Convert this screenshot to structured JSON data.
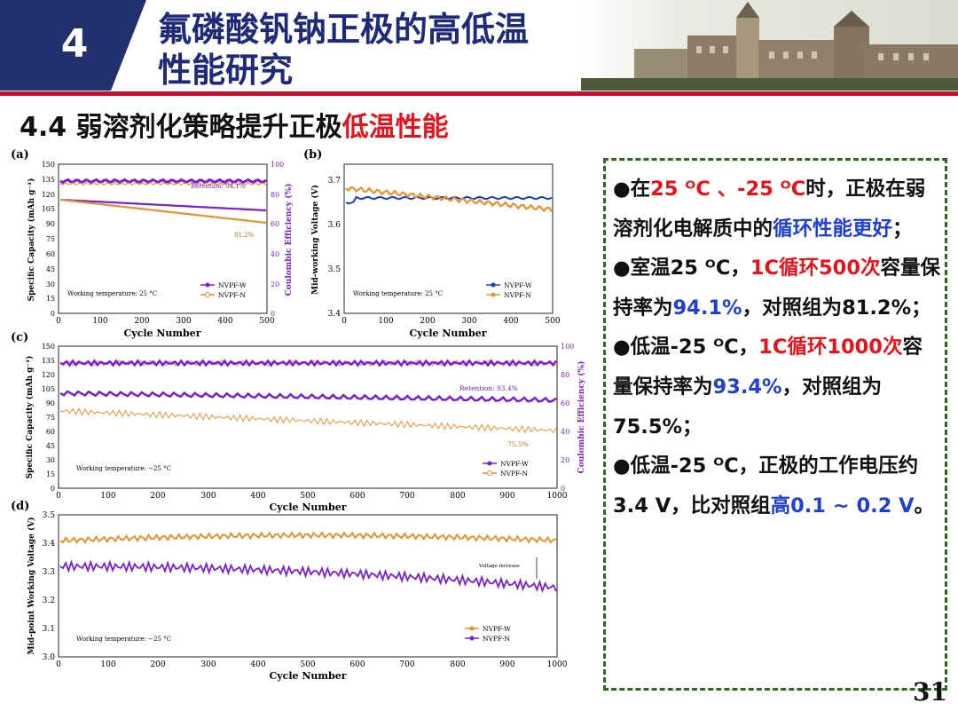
{
  "header": {
    "section_number": "4",
    "title_line1": "氟磷酸钒钠正极的高低温",
    "title_line2": "性能研究"
  },
  "subtitle": {
    "prefix": "4.4 弱溶剂化策略提升正极",
    "highlight": "低温性能"
  },
  "figure": {
    "panels": [
      {
        "letter": "(a)",
        "xlabel": "Cycle Number",
        "ylabel_left": "Specific Capacity (mAh g⁻¹)",
        "ylabel_right": "Coulombic Efficiency (%)",
        "x_ticks": [
          "0",
          "100",
          "200",
          "300",
          "400",
          "500"
        ],
        "y_ticks_left": [
          "0",
          "15",
          "30",
          "45",
          "60",
          "75",
          "90",
          "105",
          "120",
          "135",
          "150"
        ],
        "y_ticks_right": [
          "0",
          "20",
          "40",
          "60",
          "80",
          "100"
        ],
        "note": "Working temperature: 25 °C",
        "retention_label": "Retention: 94.1%",
        "control_label": "81.2%",
        "legend": [
          "NVPF-W",
          "NVPF-N"
        ]
      },
      {
        "letter": "(b)",
        "xlabel": "Cycle Number",
        "ylabel_left": "Mid-working Voltage (V)",
        "x_ticks": [
          "0",
          "100",
          "200",
          "300",
          "400",
          "500"
        ],
        "y_ticks_left": [
          "3.4",
          "3.5",
          "3.6",
          "3.7"
        ],
        "note": "Working temperature: 25 °C",
        "legend": [
          "NVPF-W",
          "NVPF-N"
        ]
      },
      {
        "letter": "(c)",
        "xlabel": "Cycle Number",
        "ylabel_left": "Specific Capacity (mAh g⁻¹)",
        "ylabel_right": "Coulombic Efficiency (%)",
        "x_ticks": [
          "0",
          "100",
          "200",
          "300",
          "400",
          "500",
          "600",
          "700",
          "800",
          "900",
          "1000"
        ],
        "y_ticks_left": [
          "0",
          "15",
          "30",
          "45",
          "60",
          "75",
          "90",
          "105",
          "120",
          "135",
          "150"
        ],
        "y_ticks_right": [
          "0",
          "20",
          "40",
          "60",
          "80",
          "100"
        ],
        "note": "Working temperature: −25 °C",
        "retention_label": "Retention: 93.4%",
        "control_label": "75.5%",
        "legend": [
          "NVPF-W",
          "NVPF-N"
        ]
      },
      {
        "letter": "(d)",
        "xlabel": "Cycle Number",
        "ylabel_left": "Mid-point Working Voltage (V)",
        "x_ticks": [
          "0",
          "100",
          "200",
          "300",
          "400",
          "500",
          "600",
          "700",
          "800",
          "900",
          "1000"
        ],
        "y_ticks_left": [
          "3.0",
          "3.1",
          "3.2",
          "3.3",
          "3.4",
          "3.5"
        ],
        "note": "Working temperature: −25 °C",
        "annotation": "Voltage increase",
        "legend": [
          "NVPF-W",
          "NVPF-N"
        ]
      }
    ]
  },
  "colors": {
    "w_purple": "#7a1fd1",
    "n_orange": "#e8912f",
    "w_blue": "#1a3cc4",
    "box_border": "#2e6a1c",
    "title_blue": "#1f2a78",
    "accent_red": "#e8121b"
  },
  "summary": {
    "b1_a": "●在",
    "b1_b": "25 ᴼC 、-25 ᴼC",
    "b1_c": "时，正极在弱溶剂化电解质中的",
    "b1_d": "循环性能更好",
    "b1_e": "；",
    "b2_a": "●室温25 ᴼC，",
    "b2_b": "1C循环500次",
    "b2_c": "容量保持率为",
    "b2_d": "94.1%",
    "b2_e": "，对照组为81.2%；",
    "b3_a": "●低温-25 ᴼC，",
    "b3_b": "1C循环1000次",
    "b3_c": "容量保持率为",
    "b3_d": "93.4%",
    "b3_e": "，对照组为75.5%；",
    "b4_a": "●低温-25 ᴼC，正极的工作电压约3.4 V，比对照组",
    "b4_b": "高0.1 ~ 0.2 V",
    "b4_c": "。"
  },
  "page_number": "31"
}
